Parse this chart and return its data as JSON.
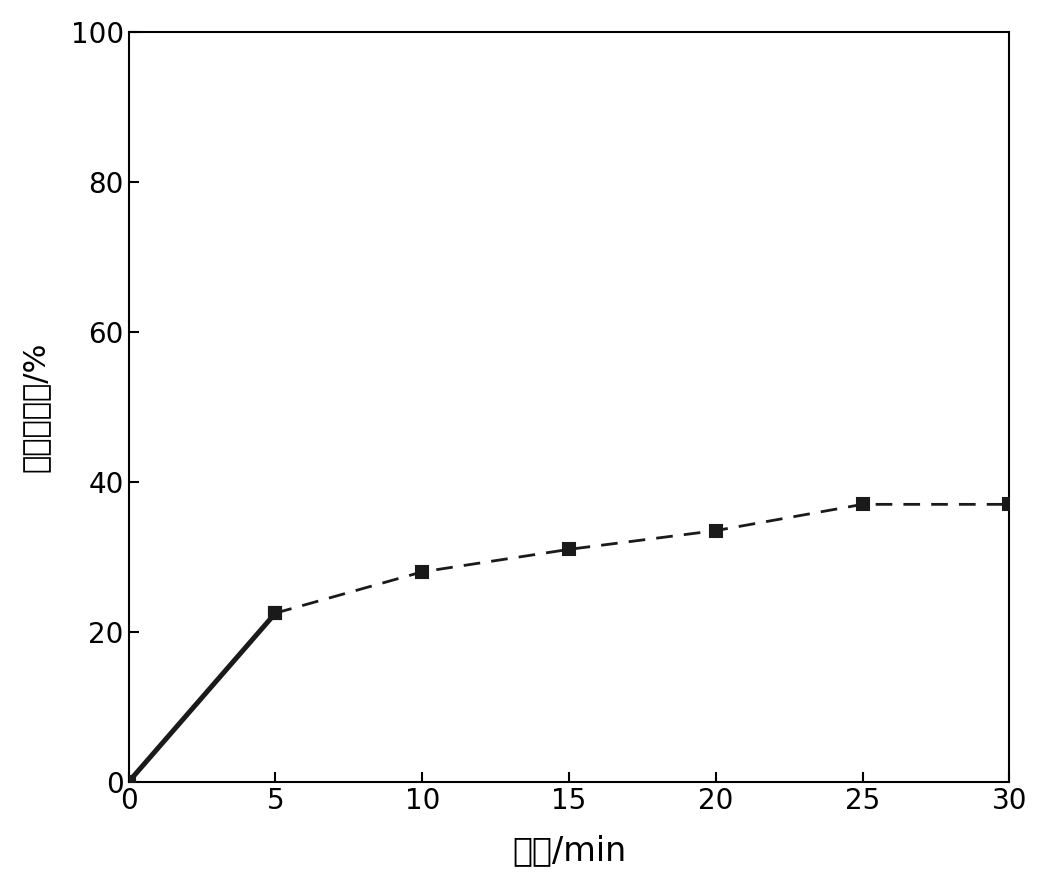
{
  "x": [
    0,
    5,
    10,
    15,
    20,
    25,
    30
  ],
  "y": [
    0,
    22.5,
    28.0,
    31.0,
    33.5,
    37.0,
    37.0
  ],
  "xlabel": "时间/min",
  "ylabel_chars": [
    "甲",
    "醉",
    "去",
    "除",
    "率",
    "/%"
  ],
  "xlim": [
    0,
    30
  ],
  "ylim": [
    0,
    100
  ],
  "xticks": [
    0,
    5,
    10,
    15,
    20,
    25,
    30
  ],
  "yticks": [
    0,
    20,
    40,
    60,
    80,
    100
  ],
  "line_color": "#1a1a1a",
  "marker": "s",
  "marker_size": 9,
  "line_width": 2.0,
  "background_color": "#ffffff",
  "xlabel_fontsize": 24,
  "ylabel_fontsize": 22,
  "tick_fontsize": 20
}
